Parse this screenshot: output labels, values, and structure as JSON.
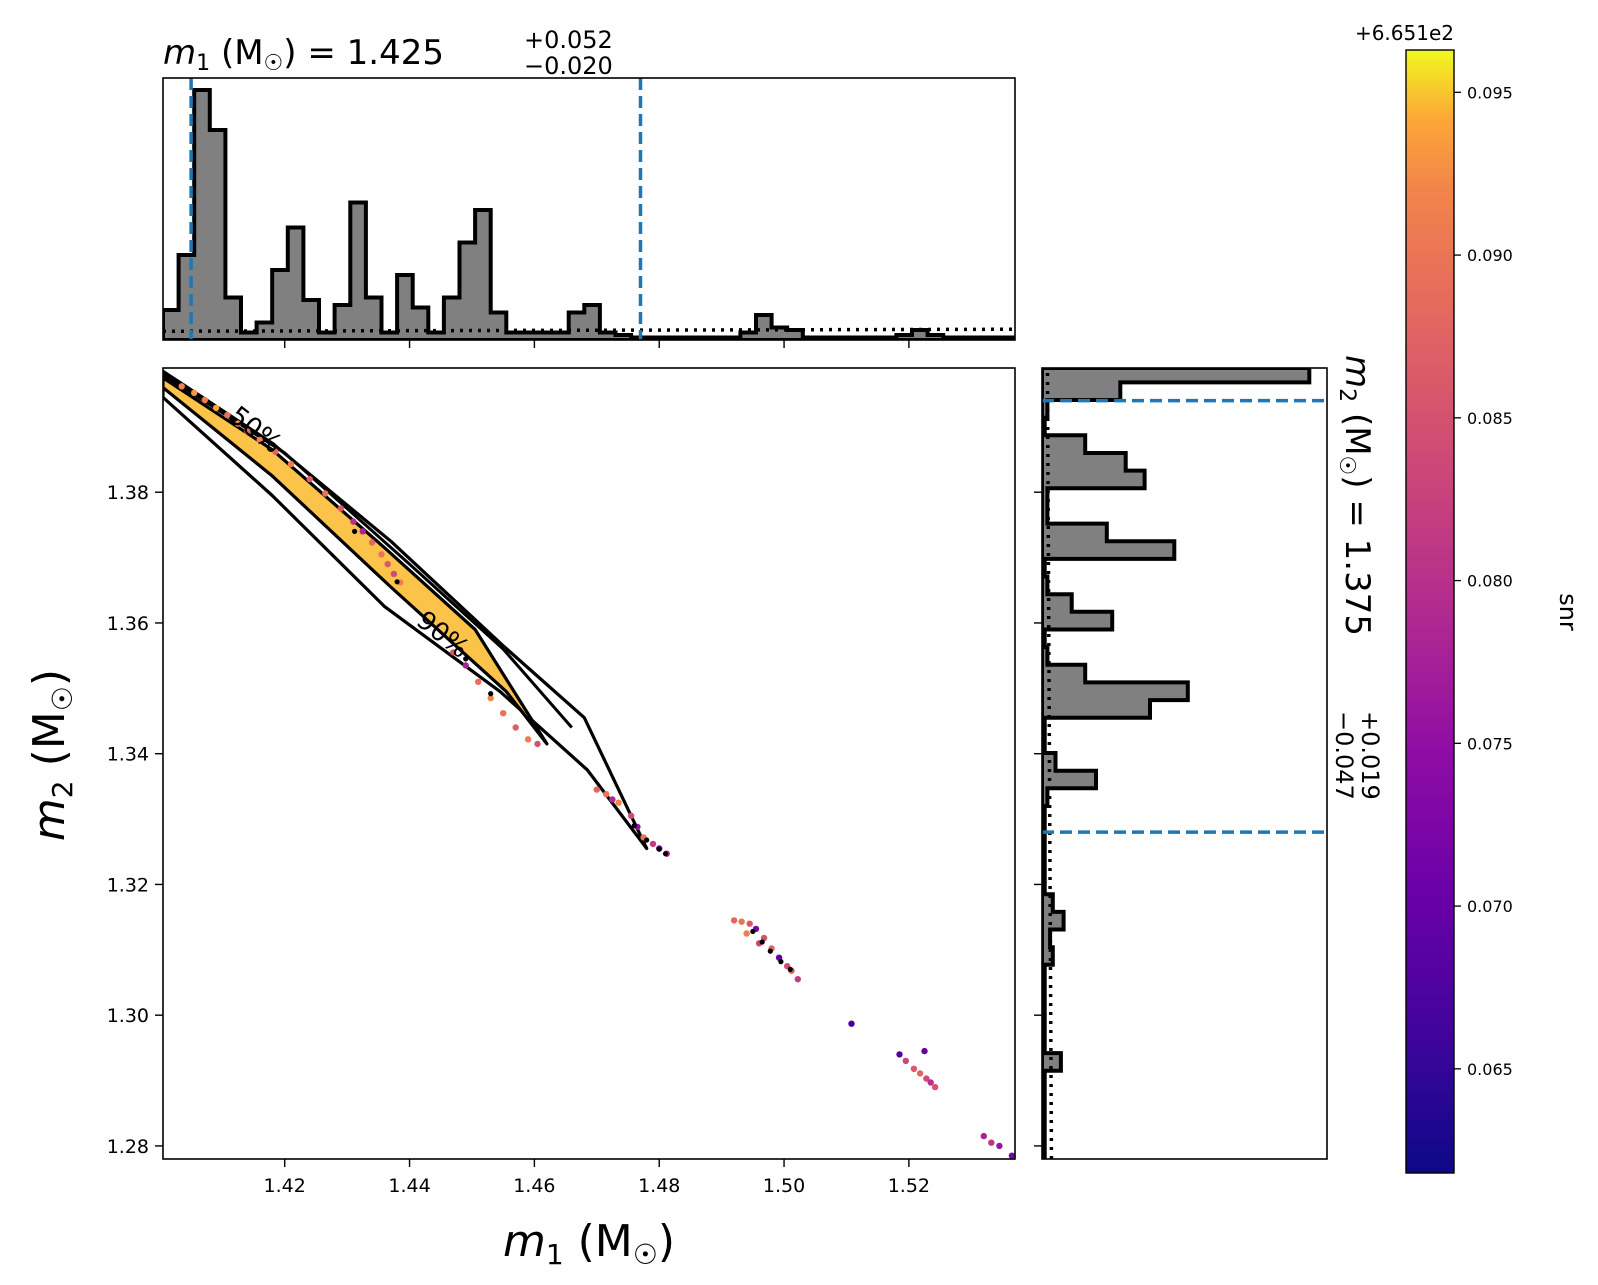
{
  "chart_data": {
    "type": "scatter",
    "x_axis": {
      "label_var": "m",
      "label_sub": "1",
      "label_unit": "(M",
      "label_sun": "☉",
      "label_close": ")",
      "lim": [
        1.4005,
        1.537
      ],
      "ticks": [
        1.42,
        1.44,
        1.46,
        1.48,
        1.5,
        1.52
      ],
      "tick_labels": [
        "1.42",
        "1.44",
        "1.46",
        "1.48",
        "1.50",
        "1.52"
      ]
    },
    "y_axis": {
      "label_var": "m",
      "label_sub": "2",
      "label_unit": "(M",
      "label_sun": "☉",
      "label_close": ")",
      "lim": [
        1.278,
        1.399
      ],
      "ticks": [
        1.28,
        1.3,
        1.32,
        1.34,
        1.36,
        1.38
      ],
      "tick_labels": [
        "1.28",
        "1.30",
        "1.32",
        "1.34",
        "1.36",
        "1.38"
      ]
    },
    "title_m1": {
      "var": "m",
      "sub": "1",
      "unit": "(M",
      "sun": "☉",
      "close": ") = 1.425",
      "sup": "+0.052",
      "lower": "−0.020"
    },
    "title_m2": {
      "var": "m",
      "sub": "2",
      "unit": "(M",
      "sun": "☉",
      "close": ") = 1.375",
      "sup": "+0.019",
      "lower": "−0.047"
    },
    "m1_credible_interval": [
      1.405,
      1.477
    ],
    "m2_credible_interval": [
      1.328,
      1.394
    ],
    "contour_labels": [
      "50%",
      "90%"
    ],
    "contours": {
      "outer_90": [
        [
          1.4005,
          1.3985
        ],
        [
          1.418,
          1.3875
        ],
        [
          1.437,
          1.3725
        ],
        [
          1.455,
          1.3565
        ],
        [
          1.468,
          1.3455
        ],
        [
          1.478,
          1.3255
        ],
        [
          1.4685,
          1.3375
        ],
        [
          1.4545,
          1.3495
        ],
        [
          1.436,
          1.3625
        ],
        [
          1.418,
          1.3795
        ],
        [
          1.4005,
          1.3945
        ]
      ],
      "inner_50": [
        [
          1.4005,
          1.3975
        ],
        [
          1.418,
          1.3865
        ],
        [
          1.436,
          1.3715
        ],
        [
          1.4505,
          1.359
        ],
        [
          1.462,
          1.3415
        ],
        [
          1.4555,
          1.3495
        ],
        [
          1.437,
          1.3655
        ],
        [
          1.418,
          1.3825
        ],
        [
          1.4005,
          1.396
        ]
      ],
      "upper_ridge": [
        [
          1.4005,
          1.398
        ],
        [
          1.42,
          1.386
        ],
        [
          1.44,
          1.369
        ],
        [
          1.455,
          1.356
        ],
        [
          1.466,
          1.344
        ]
      ]
    },
    "scatter_points": [
      {
        "x": 1.4035,
        "y": 1.3962,
        "c": 0.092
      },
      {
        "x": 1.4055,
        "y": 1.3952,
        "c": 0.093
      },
      {
        "x": 1.4072,
        "y": 1.3941,
        "c": 0.091
      },
      {
        "x": 1.409,
        "y": 1.3929,
        "c": 0.094
      },
      {
        "x": 1.4108,
        "y": 1.3918,
        "c": 0.09
      },
      {
        "x": 1.4125,
        "y": 1.3905,
        "c": 0.093
      },
      {
        "x": 1.414,
        "y": 1.3893,
        "c": 0.089
      },
      {
        "x": 1.416,
        "y": 1.388,
        "c": 0.092
      },
      {
        "x": 1.4185,
        "y": 1.3862,
        "c": 0.088
      },
      {
        "x": 1.421,
        "y": 1.3843,
        "c": 0.091
      },
      {
        "x": 1.424,
        "y": 1.382,
        "c": 0.087
      },
      {
        "x": 1.4265,
        "y": 1.3798,
        "c": 0.09
      },
      {
        "x": 1.429,
        "y": 1.3775,
        "c": 0.086
      },
      {
        "x": 1.431,
        "y": 1.3755,
        "c": 0.08
      },
      {
        "x": 1.4325,
        "y": 1.374,
        "c": 0.078
      },
      {
        "x": 1.434,
        "y": 1.3723,
        "c": 0.088
      },
      {
        "x": 1.4355,
        "y": 1.3705,
        "c": 0.09
      },
      {
        "x": 1.4365,
        "y": 1.369,
        "c": 0.086
      },
      {
        "x": 1.4375,
        "y": 1.3675,
        "c": 0.084
      },
      {
        "x": 1.4385,
        "y": 1.3662,
        "c": 0.091
      },
      {
        "x": 1.447,
        "y": 1.3555,
        "c": 0.086
      },
      {
        "x": 1.449,
        "y": 1.3535,
        "c": 0.078
      },
      {
        "x": 1.451,
        "y": 1.351,
        "c": 0.089
      },
      {
        "x": 1.453,
        "y": 1.3485,
        "c": 0.092
      },
      {
        "x": 1.455,
        "y": 1.3462,
        "c": 0.09
      },
      {
        "x": 1.457,
        "y": 1.344,
        "c": 0.087
      },
      {
        "x": 1.459,
        "y": 1.3422,
        "c": 0.091
      },
      {
        "x": 1.4605,
        "y": 1.3415,
        "c": 0.085
      },
      {
        "x": 1.47,
        "y": 1.3345,
        "c": 0.088
      },
      {
        "x": 1.4715,
        "y": 1.3338,
        "c": 0.09
      },
      {
        "x": 1.4725,
        "y": 1.333,
        "c": 0.079
      },
      {
        "x": 1.4735,
        "y": 1.3325,
        "c": 0.092
      },
      {
        "x": 1.4755,
        "y": 1.3305,
        "c": 0.084
      },
      {
        "x": 1.4765,
        "y": 1.3288,
        "c": 0.075
      },
      {
        "x": 1.4775,
        "y": 1.3272,
        "c": 0.09
      },
      {
        "x": 1.479,
        "y": 1.3262,
        "c": 0.082
      },
      {
        "x": 1.48,
        "y": 1.3255,
        "c": 0.073
      },
      {
        "x": 1.4812,
        "y": 1.3247,
        "c": 0.078
      },
      {
        "x": 1.492,
        "y": 1.3145,
        "c": 0.088
      },
      {
        "x": 1.4932,
        "y": 1.3143,
        "c": 0.09
      },
      {
        "x": 1.4945,
        "y": 1.314,
        "c": 0.086
      },
      {
        "x": 1.4955,
        "y": 1.3132,
        "c": 0.072
      },
      {
        "x": 1.4968,
        "y": 1.3118,
        "c": 0.085
      },
      {
        "x": 1.498,
        "y": 1.3102,
        "c": 0.088
      },
      {
        "x": 1.4992,
        "y": 1.3088,
        "c": 0.07
      },
      {
        "x": 1.5005,
        "y": 1.3075,
        "c": 0.084
      },
      {
        "x": 1.5012,
        "y": 1.3068,
        "c": 0.087
      },
      {
        "x": 1.5022,
        "y": 1.3055,
        "c": 0.082
      },
      {
        "x": 1.494,
        "y": 1.3125,
        "c": 0.091
      },
      {
        "x": 1.496,
        "y": 1.311,
        "c": 0.083
      },
      {
        "x": 1.5108,
        "y": 1.2987,
        "c": 0.066
      },
      {
        "x": 1.5185,
        "y": 1.294,
        "c": 0.068
      },
      {
        "x": 1.5195,
        "y": 1.293,
        "c": 0.083
      },
      {
        "x": 1.5208,
        "y": 1.2918,
        "c": 0.086
      },
      {
        "x": 1.5218,
        "y": 1.2911,
        "c": 0.088
      },
      {
        "x": 1.5228,
        "y": 1.2903,
        "c": 0.084
      },
      {
        "x": 1.5235,
        "y": 1.2897,
        "c": 0.08
      },
      {
        "x": 1.5242,
        "y": 1.289,
        "c": 0.085
      },
      {
        "x": 1.5225,
        "y": 1.2945,
        "c": 0.07
      },
      {
        "x": 1.532,
        "y": 1.2815,
        "c": 0.078
      },
      {
        "x": 1.5332,
        "y": 1.2805,
        "c": 0.081
      },
      {
        "x": 1.5345,
        "y": 1.28,
        "c": 0.076
      },
      {
        "x": 1.5365,
        "y": 1.2785,
        "c": 0.072
      }
    ],
    "black_points": [
      {
        "x": 1.4312,
        "y": 1.374
      },
      {
        "x": 1.438,
        "y": 1.3663
      },
      {
        "x": 1.449,
        "y": 1.3545
      },
      {
        "x": 1.453,
        "y": 1.3492
      },
      {
        "x": 1.476,
        "y": 1.329
      },
      {
        "x": 1.478,
        "y": 1.3268
      },
      {
        "x": 1.48,
        "y": 1.3254
      },
      {
        "x": 1.481,
        "y": 1.3247
      },
      {
        "x": 1.495,
        "y": 1.3128
      },
      {
        "x": 1.4965,
        "y": 1.3112
      },
      {
        "x": 1.4978,
        "y": 1.3098
      },
      {
        "x": 1.4995,
        "y": 1.3082
      },
      {
        "x": 1.501,
        "y": 1.307
      }
    ],
    "colorbar": {
      "label": "snr",
      "offset_text": "+6.651e2",
      "colormap": "plasma",
      "lim": [
        0.0618,
        0.0963
      ],
      "ticks": [
        0.065,
        0.07,
        0.075,
        0.08,
        0.085,
        0.09,
        0.095
      ],
      "tick_labels": [
        "0.065",
        "0.070",
        "0.075",
        "0.080",
        "0.085",
        "0.090",
        "0.095"
      ]
    },
    "m1_histogram": {
      "bin_edges": [
        1.4005,
        1.403,
        1.4055,
        1.408,
        1.4105,
        1.413,
        1.4155,
        1.418,
        1.4205,
        1.423,
        1.4255,
        1.428,
        1.4305,
        1.433,
        1.4355,
        1.438,
        1.4405,
        1.443,
        1.4455,
        1.448,
        1.4505,
        1.453,
        1.4555,
        1.458,
        1.4605,
        1.463,
        1.4655,
        1.468,
        1.4705,
        1.473,
        1.4755,
        1.478,
        1.4805,
        1.483,
        1.4855,
        1.488,
        1.4905,
        1.493,
        1.4955,
        1.498,
        1.5005,
        1.503,
        1.5055,
        1.508,
        1.5105,
        1.513,
        1.5155,
        1.518,
        1.5205,
        1.523,
        1.5255,
        1.528,
        1.5305,
        1.533,
        1.5355,
        1.537
      ],
      "counts": [
        0.12,
        0.34,
        1.0,
        0.84,
        0.17,
        0.03,
        0.07,
        0.28,
        0.45,
        0.16,
        0.03,
        0.14,
        0.55,
        0.17,
        0.03,
        0.26,
        0.13,
        0.03,
        0.17,
        0.39,
        0.52,
        0.11,
        0.03,
        0.03,
        0.03,
        0.03,
        0.11,
        0.14,
        0.03,
        0.02,
        0.01,
        0.01,
        0.01,
        0.01,
        0.01,
        0.01,
        0.01,
        0.03,
        0.1,
        0.05,
        0.04,
        0.01,
        0.01,
        0.01,
        0.01,
        0.01,
        0.01,
        0.02,
        0.04,
        0.02,
        0.01,
        0.01,
        0.01,
        0.01,
        0.01
      ],
      "prior_level": 0.035
    },
    "m2_histogram": {
      "bin_edges": [
        1.278,
        1.2807,
        1.2834,
        1.2861,
        1.2888,
        1.2915,
        1.2942,
        1.2969,
        1.2996,
        1.3023,
        1.305,
        1.3077,
        1.3104,
        1.3131,
        1.3158,
        1.3185,
        1.3212,
        1.3239,
        1.3266,
        1.3293,
        1.332,
        1.3347,
        1.3374,
        1.3401,
        1.3428,
        1.3455,
        1.3482,
        1.3509,
        1.3536,
        1.3563,
        1.359,
        1.3617,
        1.3644,
        1.3671,
        1.3698,
        1.3725,
        1.3752,
        1.3779,
        1.3806,
        1.3833,
        1.386,
        1.3887,
        1.3914,
        1.3941,
        1.3968,
        1.399
      ],
      "counts": [
        0.01,
        0.01,
        0.01,
        0.01,
        0.01,
        0.07,
        0.01,
        0.01,
        0.01,
        0.01,
        0.01,
        0.04,
        0.03,
        0.08,
        0.04,
        0.01,
        0.01,
        0.01,
        0.01,
        0.01,
        0.02,
        0.2,
        0.05,
        0.01,
        0.01,
        0.4,
        0.54,
        0.16,
        0.02,
        0.01,
        0.26,
        0.11,
        0.02,
        0.01,
        0.49,
        0.24,
        0.02,
        0.02,
        0.38,
        0.31,
        0.16,
        0.01,
        0.02,
        0.29,
        0.99
      ],
      "prior_level": 0.035
    }
  }
}
